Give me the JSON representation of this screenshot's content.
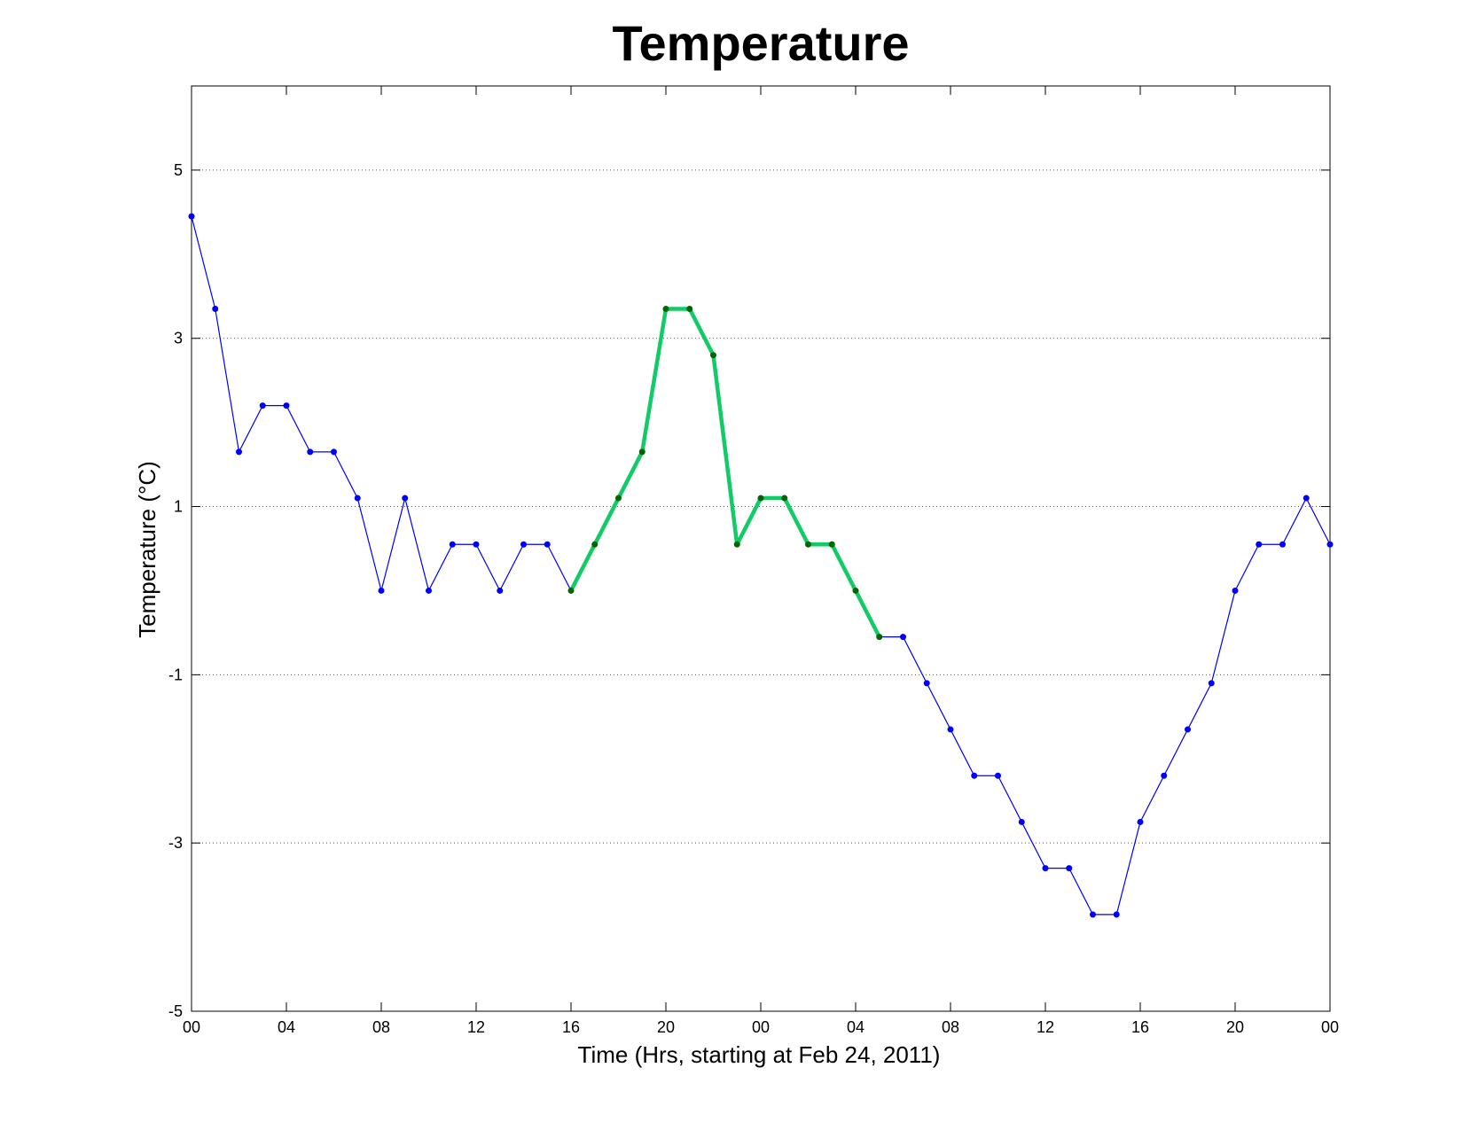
{
  "chart_data": {
    "type": "line",
    "title": "Temperature",
    "xlabel": "Time (Hrs, starting at Feb 24, 2011)",
    "ylabel": "Temperature (°C)",
    "ylim": [
      -5,
      6
    ],
    "yticks": [
      -5,
      -3,
      -1,
      1,
      3,
      5
    ],
    "xlim": [
      0,
      48
    ],
    "x_tick_positions": [
      0,
      4,
      8,
      12,
      16,
      20,
      24,
      28,
      32,
      36,
      40,
      44,
      48
    ],
    "x_tick_labels": [
      "00",
      "04",
      "08",
      "12",
      "16",
      "20",
      "00",
      "04",
      "08",
      "12",
      "16",
      "20",
      "00"
    ],
    "grid": "y-dotted",
    "x": [
      0,
      1,
      2,
      3,
      4,
      5,
      6,
      7,
      8,
      9,
      10,
      11,
      12,
      13,
      14,
      15,
      16,
      17,
      18,
      19,
      20,
      21,
      22,
      23,
      24,
      25,
      26,
      27,
      28,
      29,
      30,
      31,
      32,
      33,
      34,
      35,
      36,
      37,
      38,
      39,
      40,
      41,
      42,
      43,
      44,
      45,
      46,
      47,
      48
    ],
    "series": [
      {
        "color": "#0000ff",
        "values": [
          4.45,
          3.35,
          1.65,
          2.2,
          2.2,
          1.65,
          1.65,
          1.1,
          0,
          1.1,
          0,
          0.55,
          0.55,
          0,
          0.55,
          0.55,
          0,
          0.55,
          1.1,
          1.65,
          3.35,
          3.35,
          2.8,
          0.55,
          1.1,
          1.1,
          0.55,
          0.55,
          0,
          -0.55,
          -0.55,
          -1.1,
          -1.65,
          -2.2,
          -2.2,
          -2.75,
          -3.3,
          -3.3,
          -3.85,
          -3.85,
          -2.75,
          -2.2,
          -1.65,
          -1.1,
          0,
          0.55,
          0.55,
          1.1,
          0.55
        ]
      },
      {
        "color": "#11cc66",
        "marker_color": "#006600",
        "x_range": [
          16,
          29
        ],
        "highlight": true
      }
    ]
  }
}
